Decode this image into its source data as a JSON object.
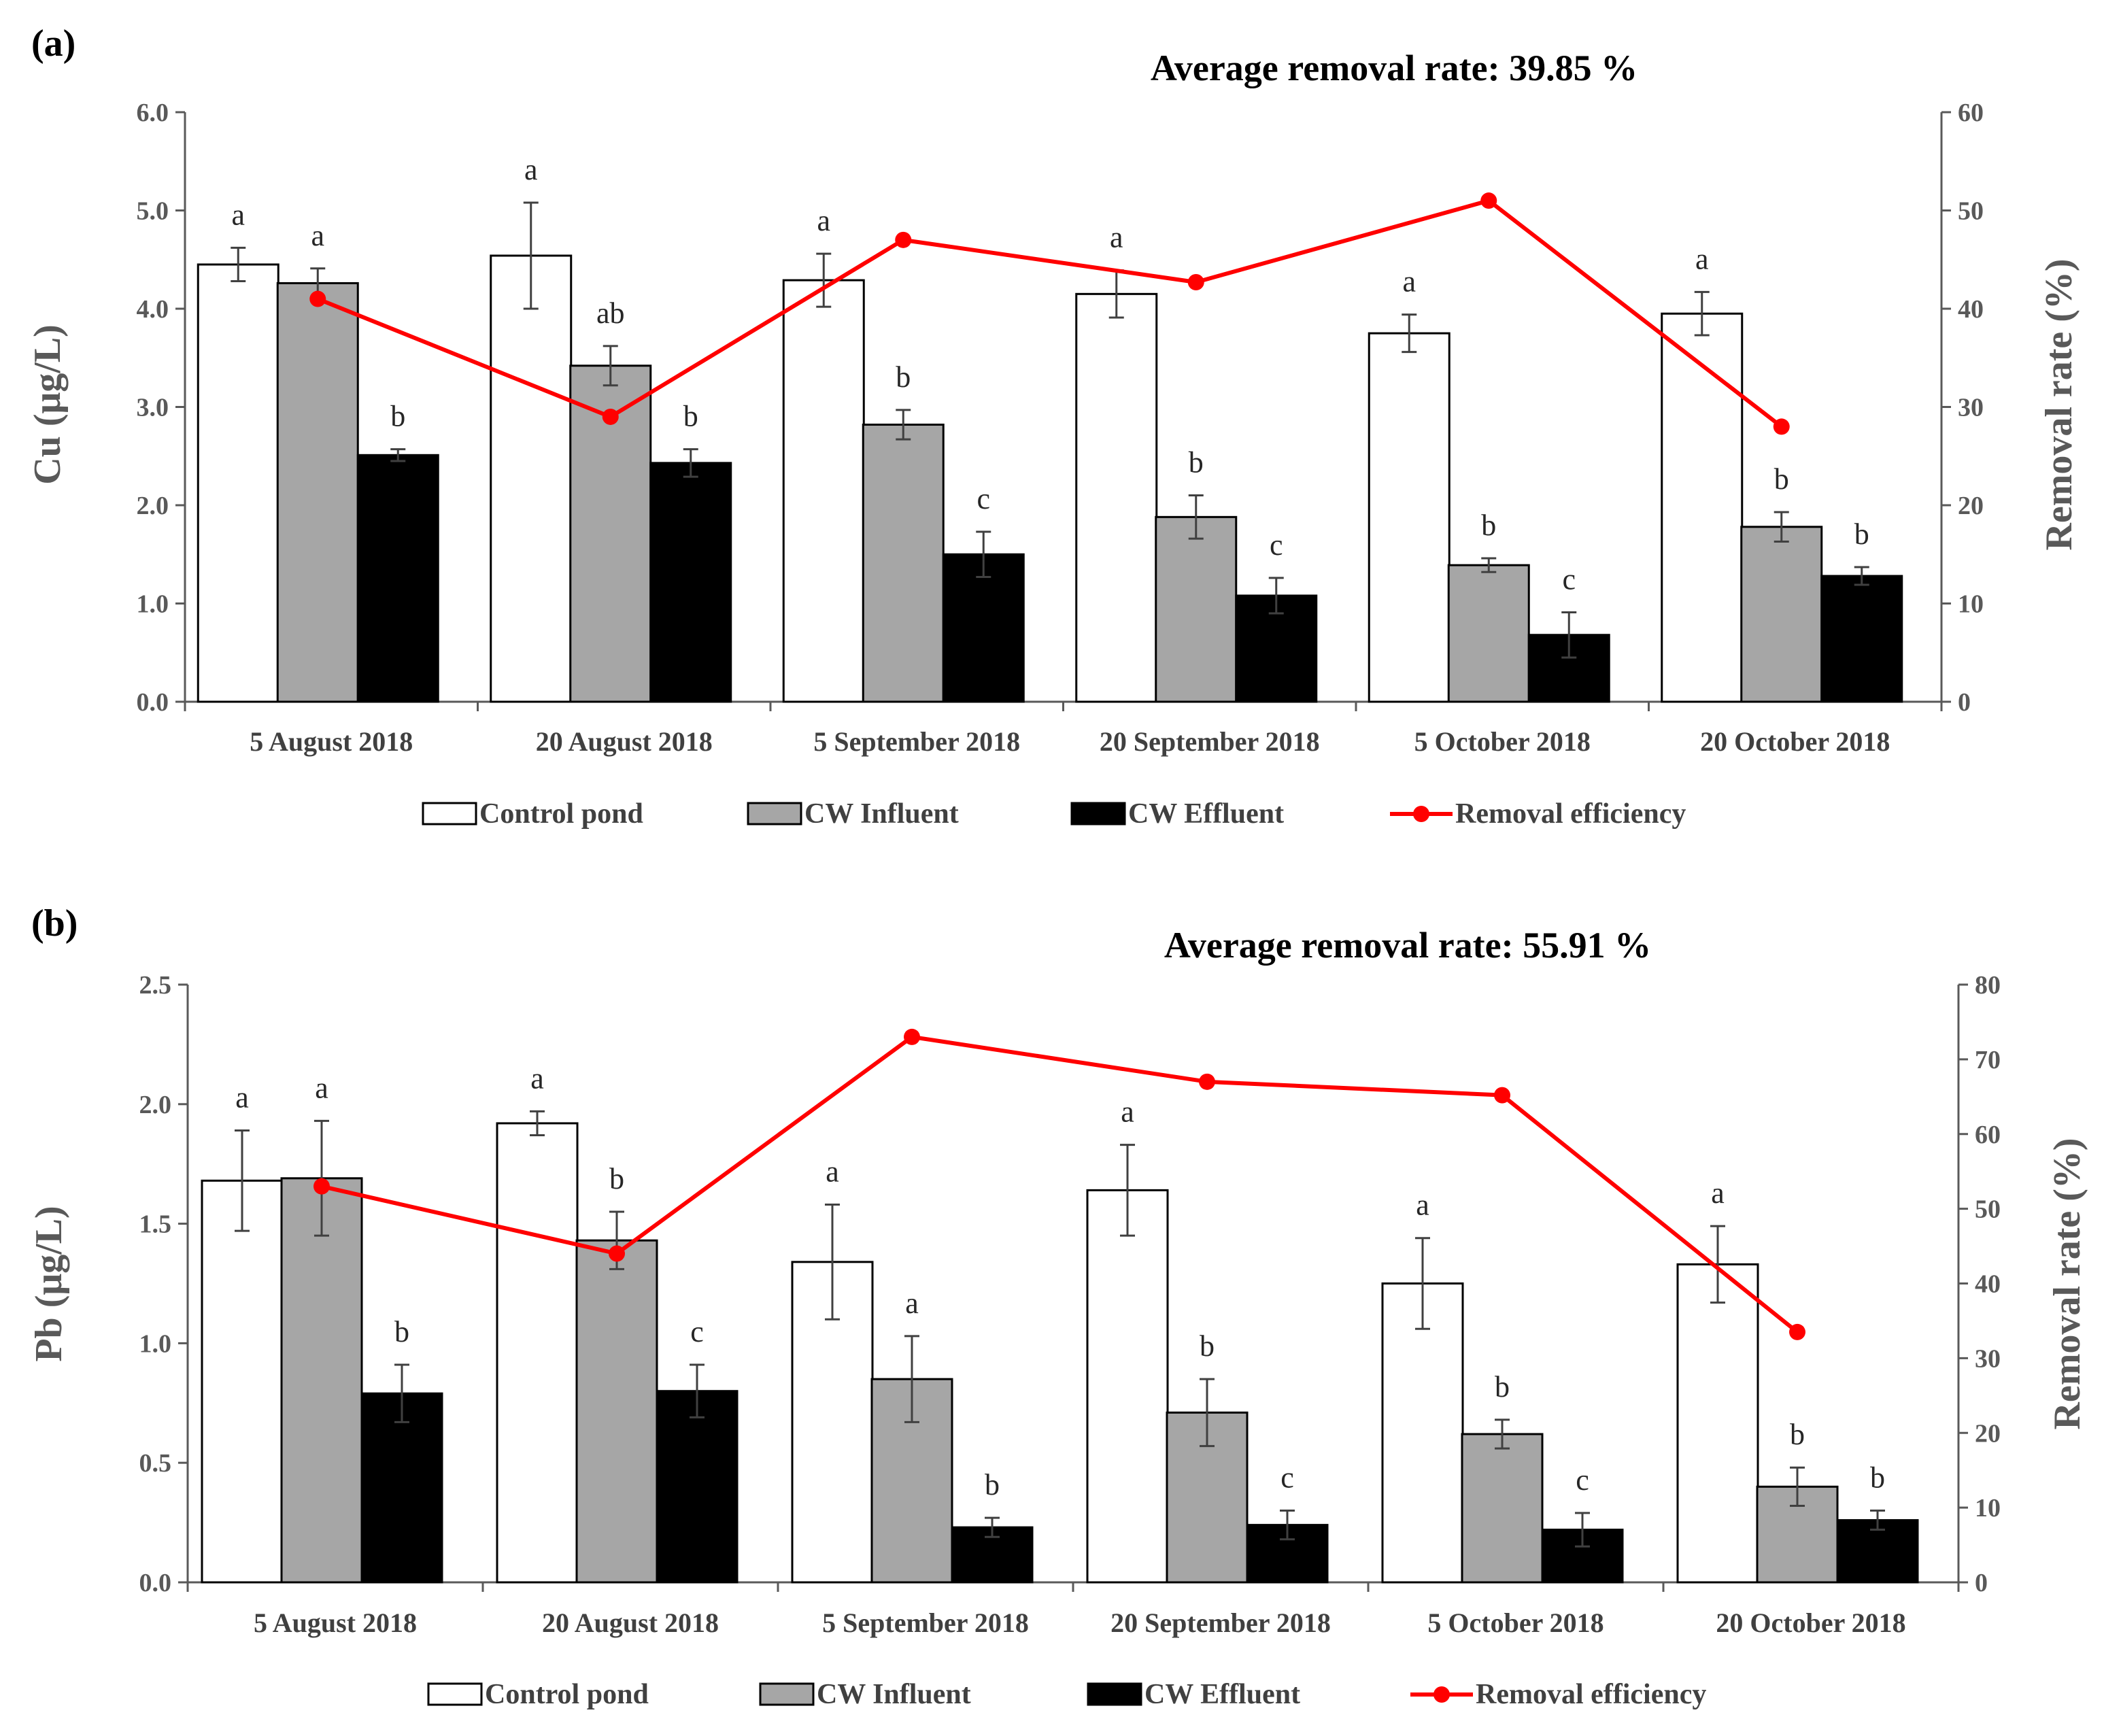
{
  "chart_data": [
    {
      "type": "bar",
      "panel_label": "(a)",
      "title": "Average removal rate: 39.85 %",
      "xlabel": "",
      "ylabel": "Cu (μg/L)",
      "ylabel_right": "Removal rate (%)",
      "ylim": [
        0,
        6
      ],
      "ylim_right": [
        0,
        60
      ],
      "yticks": [
        "0.0",
        "1.0",
        "2.0",
        "3.0",
        "4.0",
        "5.0",
        "6.0"
      ],
      "yticks_right": [
        "0",
        "10",
        "20",
        "30",
        "40",
        "50",
        "60"
      ],
      "categories": [
        "5 August 2018",
        "20 August 2018",
        "5 September 2018",
        "20 September 2018",
        "5 October 2018",
        "20 October 2018"
      ],
      "series": [
        {
          "name": "Control pond",
          "values": [
            4.45,
            4.54,
            4.29,
            4.15,
            3.75,
            3.95
          ],
          "errors": [
            0.17,
            0.54,
            0.27,
            0.24,
            0.19,
            0.22
          ],
          "labels": [
            "a",
            "a",
            "a",
            "a",
            "a",
            "a"
          ],
          "color": "#ffffff"
        },
        {
          "name": "CW Influent",
          "values": [
            4.26,
            3.42,
            2.82,
            1.88,
            1.39,
            1.78
          ],
          "errors": [
            0.15,
            0.2,
            0.15,
            0.22,
            0.07,
            0.15
          ],
          "labels": [
            "a",
            "ab",
            "b",
            "b",
            "b",
            "b"
          ],
          "color": "#a6a6a6"
        },
        {
          "name": "CW Effluent",
          "values": [
            2.51,
            2.43,
            1.5,
            1.08,
            0.68,
            1.28
          ],
          "errors": [
            0.06,
            0.14,
            0.23,
            0.18,
            0.23,
            0.09
          ],
          "labels": [
            "b",
            "b",
            "c",
            "c",
            "c",
            "b"
          ],
          "color": "#000000"
        }
      ],
      "line": {
        "name": "Removal efficiency",
        "values": [
          41,
          29,
          47,
          42.7,
          51,
          28
        ],
        "color": "#ff0000"
      },
      "legend": [
        "Control pond",
        "CW Influent",
        "CW Effluent",
        "Removal efficiency"
      ]
    },
    {
      "type": "bar",
      "panel_label": "(b)",
      "title": "Average removal rate: 55.91 %",
      "xlabel": "",
      "ylabel": "Pb (μg/L)",
      "ylabel_right": "Removal rate (%)",
      "ylim": [
        0,
        2.5
      ],
      "ylim_right": [
        0,
        80
      ],
      "yticks": [
        "0.0",
        "0.5",
        "1.0",
        "1.5",
        "2.0",
        "2.5"
      ],
      "yticks_right": [
        "0",
        "10",
        "20",
        "30",
        "40",
        "50",
        "60",
        "70",
        "80"
      ],
      "categories": [
        "5 August 2018",
        "20 August 2018",
        "5 September 2018",
        "20 September 2018",
        "5 October 2018",
        "20 October 2018"
      ],
      "series": [
        {
          "name": "Control pond",
          "values": [
            1.68,
            1.92,
            1.34,
            1.64,
            1.25,
            1.33
          ],
          "errors": [
            0.21,
            0.05,
            0.24,
            0.19,
            0.19,
            0.16
          ],
          "labels": [
            "a",
            "a",
            "a",
            "a",
            "a",
            "a"
          ],
          "color": "#ffffff"
        },
        {
          "name": "CW Influent",
          "values": [
            1.69,
            1.43,
            0.85,
            0.71,
            0.62,
            0.4
          ],
          "errors": [
            0.24,
            0.12,
            0.18,
            0.14,
            0.06,
            0.08
          ],
          "labels": [
            "a",
            "b",
            "a",
            "b",
            "b",
            "b"
          ],
          "color": "#a6a6a6"
        },
        {
          "name": "CW Effluent",
          "values": [
            0.79,
            0.8,
            0.23,
            0.24,
            0.22,
            0.26
          ],
          "errors": [
            0.12,
            0.11,
            0.04,
            0.06,
            0.07,
            0.04
          ],
          "labels": [
            "b",
            "c",
            "b",
            "c",
            "c",
            "b"
          ],
          "color": "#000000"
        }
      ],
      "line": {
        "name": "Removal efficiency",
        "values": [
          53,
          44,
          73,
          67,
          65.2,
          33.5
        ],
        "color": "#ff0000"
      },
      "legend": [
        "Control pond",
        "CW Influent",
        "CW Effluent",
        "Removal efficiency"
      ]
    }
  ]
}
